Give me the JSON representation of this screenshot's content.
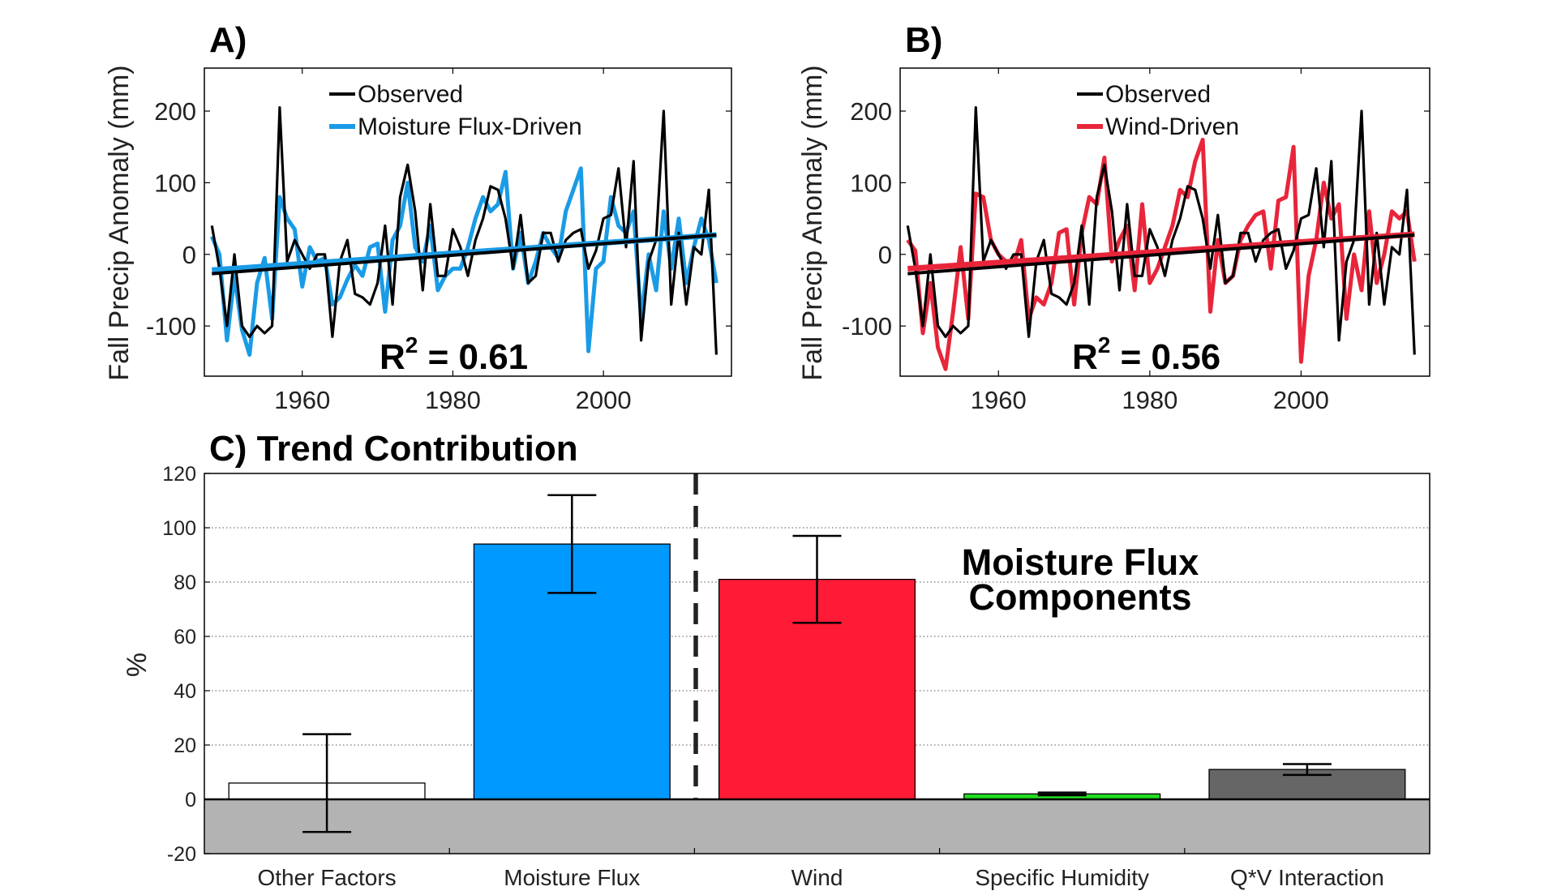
{
  "chart_data": [
    {
      "type": "line",
      "panel_label": "A)",
      "ylabel": "Fall Precip Anomaly (mm)",
      "x_ticks": [
        1960,
        1980,
        2000
      ],
      "y_ticks": [
        "-100",
        "0",
        "100",
        "200"
      ],
      "xlim": [
        1947,
        2017
      ],
      "ylim": [
        -170,
        260
      ],
      "legend_position": "top-center",
      "annotation": {
        "base": "R",
        "sup": "2",
        "rest": " = 0.61"
      },
      "series": [
        {
          "name": "Observed",
          "color": "#000000",
          "x_start": 1948,
          "values": [
            40,
            -20,
            -100,
            0,
            -100,
            -115,
            -100,
            -110,
            -100,
            205,
            -10,
            20,
            0,
            -20,
            0,
            0,
            -115,
            -10,
            20,
            -55,
            -60,
            -70,
            -40,
            40,
            -70,
            80,
            125,
            60,
            -50,
            70,
            -30,
            -30,
            35,
            10,
            -30,
            20,
            50,
            95,
            90,
            50,
            -20,
            55,
            -40,
            -30,
            30,
            30,
            -10,
            20,
            30,
            35,
            -20,
            5,
            50,
            55,
            120,
            10,
            130,
            -120,
            -10,
            20,
            200,
            -70,
            30,
            -70,
            10,
            0,
            90,
            -140
          ],
          "trend": [
            -27,
            27
          ]
        },
        {
          "name": "Moisture Flux-Driven",
          "color": "#1a9be6",
          "x_start": 1948,
          "values": [
            25,
            0,
            -120,
            -30,
            -105,
            -140,
            -40,
            -5,
            -90,
            80,
            50,
            35,
            -45,
            10,
            -10,
            -5,
            -70,
            -60,
            -35,
            -15,
            -30,
            10,
            15,
            -80,
            20,
            40,
            100,
            10,
            -10,
            40,
            -50,
            -30,
            -20,
            -20,
            10,
            50,
            80,
            60,
            70,
            115,
            -20,
            30,
            -40,
            -10,
            30,
            10,
            -5,
            60,
            90,
            120,
            -135,
            -20,
            -10,
            80,
            40,
            30,
            60,
            -90,
            0,
            -50,
            60,
            -20,
            50,
            -40,
            10,
            50,
            20,
            -40
          ],
          "trend": [
            -22,
            27
          ]
        }
      ]
    },
    {
      "type": "line",
      "panel_label": "B)",
      "ylabel": "Fall Precip Anomaly (mm)",
      "x_ticks": [
        1960,
        1980,
        2000
      ],
      "y_ticks": [
        "-100",
        "0",
        "100",
        "200"
      ],
      "xlim": [
        1947,
        2017
      ],
      "ylim": [
        -170,
        260
      ],
      "legend_position": "top-center",
      "annotation": {
        "base": "R",
        "sup": "2",
        "rest": " = 0.56"
      },
      "series": [
        {
          "name": "Observed",
          "color": "#000000",
          "x_start": 1948,
          "values": [
            40,
            -20,
            -100,
            0,
            -100,
            -115,
            -100,
            -110,
            -100,
            205,
            -10,
            20,
            0,
            -20,
            0,
            0,
            -115,
            -10,
            20,
            -55,
            -60,
            -70,
            -40,
            40,
            -70,
            80,
            125,
            60,
            -50,
            70,
            -30,
            -30,
            35,
            10,
            -30,
            20,
            50,
            95,
            90,
            50,
            -20,
            55,
            -40,
            -30,
            30,
            30,
            -10,
            20,
            30,
            35,
            -20,
            5,
            50,
            55,
            120,
            10,
            130,
            -120,
            -10,
            20,
            200,
            -70,
            30,
            -70,
            10,
            0,
            90,
            -140
          ],
          "trend": [
            -27,
            27
          ]
        },
        {
          "name": "Wind-Driven",
          "color": "#e8253a",
          "x_start": 1948,
          "values": [
            20,
            5,
            -110,
            -40,
            -130,
            -160,
            -80,
            10,
            -90,
            85,
            80,
            20,
            0,
            -10,
            -15,
            20,
            -90,
            -60,
            -70,
            -40,
            30,
            35,
            -70,
            30,
            80,
            70,
            135,
            -10,
            20,
            40,
            -50,
            70,
            -40,
            -20,
            10,
            40,
            90,
            80,
            130,
            160,
            -80,
            20,
            -40,
            -30,
            20,
            40,
            55,
            60,
            -20,
            75,
            80,
            150,
            -150,
            -30,
            20,
            100,
            50,
            70,
            -90,
            0,
            -50,
            60,
            -40,
            0,
            60,
            50,
            60,
            -10
          ],
          "trend": [
            -20,
            28
          ]
        }
      ]
    },
    {
      "type": "bar",
      "panel_label": "C) Trend Contribution",
      "ylabel": "%",
      "y_ticks": [
        "-20",
        "0",
        "20",
        "40",
        "60",
        "80",
        "100",
        "120"
      ],
      "ylim": [
        -20,
        120
      ],
      "grid": "dotted-horizontal",
      "annotation_lines": [
        "Moisture Flux",
        "Components"
      ],
      "categories": [
        "Other Factors",
        "Moisture Flux",
        "Wind",
        "Specific Humidity",
        "Q*V Interaction"
      ],
      "values": [
        6,
        94,
        81,
        2,
        11
      ],
      "error_low": [
        -12,
        76,
        65,
        1.5,
        9
      ],
      "error_high": [
        24,
        112,
        97,
        2.5,
        13
      ],
      "colors": [
        "#ffffff",
        "#0099ff",
        "#ff1a35",
        "#22dd22",
        "#666666"
      ]
    }
  ]
}
